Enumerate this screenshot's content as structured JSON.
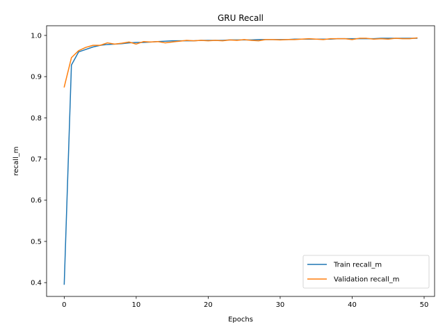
{
  "chart_data": {
    "type": "line",
    "title": "GRU Recall",
    "xlabel": "Epochs",
    "ylabel": "recall_m",
    "xlim": [
      -2.45,
      51.45
    ],
    "ylim": [
      0.3665,
      1.0235
    ],
    "xticks": [
      0,
      10,
      20,
      30,
      40,
      50
    ],
    "yticks": [
      0.4,
      0.5,
      0.6,
      0.7,
      0.8,
      0.9,
      1.0
    ],
    "ytick_labels": [
      "0.4",
      "0.5",
      "0.6",
      "0.7",
      "0.8",
      "0.9",
      "1.0"
    ],
    "grid": false,
    "legend_position": "lower-right",
    "series": [
      {
        "name": "Train recall_m",
        "color": "#1f77b4",
        "x": [
          0,
          1,
          2,
          3,
          4,
          5,
          6,
          7,
          8,
          9,
          10,
          11,
          12,
          13,
          14,
          15,
          16,
          17,
          18,
          19,
          20,
          21,
          22,
          23,
          24,
          25,
          26,
          27,
          28,
          29,
          30,
          31,
          32,
          33,
          34,
          35,
          36,
          37,
          38,
          39,
          40,
          41,
          42,
          43,
          44,
          45,
          46,
          47,
          48,
          49
        ],
        "values": [
          0.396,
          0.928,
          0.96,
          0.966,
          0.972,
          0.976,
          0.978,
          0.979,
          0.98,
          0.982,
          0.983,
          0.983,
          0.984,
          0.985,
          0.986,
          0.987,
          0.987,
          0.987,
          0.987,
          0.988,
          0.988,
          0.988,
          0.988,
          0.989,
          0.989,
          0.989,
          0.989,
          0.99,
          0.99,
          0.99,
          0.99,
          0.99,
          0.991,
          0.991,
          0.991,
          0.991,
          0.991,
          0.991,
          0.992,
          0.992,
          0.992,
          0.992,
          0.992,
          0.992,
          0.993,
          0.993,
          0.993,
          0.993,
          0.993,
          0.993
        ]
      },
      {
        "name": "Validation recall_m",
        "color": "#ff7f0e",
        "x": [
          0,
          1,
          2,
          3,
          4,
          5,
          6,
          7,
          8,
          9,
          10,
          11,
          12,
          13,
          14,
          15,
          16,
          17,
          18,
          19,
          20,
          21,
          22,
          23,
          24,
          25,
          26,
          27,
          28,
          29,
          30,
          31,
          32,
          33,
          34,
          35,
          36,
          37,
          38,
          39,
          40,
          41,
          42,
          43,
          44,
          45,
          46,
          47,
          48,
          49
        ],
        "values": [
          0.875,
          0.946,
          0.963,
          0.971,
          0.976,
          0.976,
          0.982,
          0.979,
          0.981,
          0.984,
          0.979,
          0.985,
          0.984,
          0.985,
          0.982,
          0.984,
          0.986,
          0.988,
          0.987,
          0.988,
          0.987,
          0.988,
          0.987,
          0.989,
          0.988,
          0.99,
          0.988,
          0.987,
          0.99,
          0.99,
          0.989,
          0.99,
          0.99,
          0.991,
          0.992,
          0.991,
          0.99,
          0.992,
          0.992,
          0.992,
          0.99,
          0.993,
          0.993,
          0.991,
          0.992,
          0.991,
          0.993,
          0.992,
          0.992,
          0.994
        ]
      }
    ]
  }
}
